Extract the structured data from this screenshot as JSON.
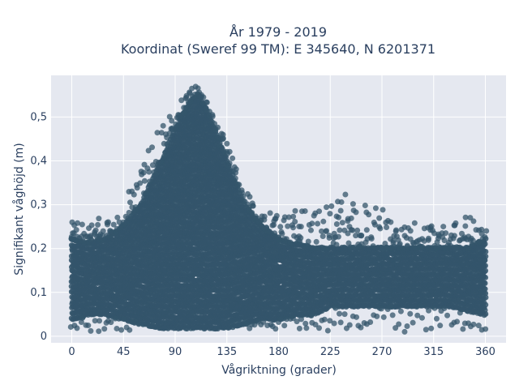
{
  "chart_data": {
    "type": "scatter",
    "title_line1": "År 1979 - 2019",
    "title_line2": "Koordinat (Sweref 99 TM): E 345640, N 6201371",
    "xlabel": "Vågriktning (grader)",
    "ylabel": "Signifikant våghöjd (m)",
    "xlim": [
      -18,
      378
    ],
    "ylim": [
      -0.015,
      0.595
    ],
    "xticks": [
      0,
      45,
      90,
      135,
      180,
      225,
      270,
      315,
      360
    ],
    "xtick_labels": [
      "0",
      "45",
      "90",
      "135",
      "180",
      "225",
      "270",
      "315",
      "360"
    ],
    "yticks": [
      0,
      0.1,
      0.2,
      0.3,
      0.4,
      0.5
    ],
    "ytick_labels": [
      "0",
      "0,1",
      "0,2",
      "0,3",
      "0,4",
      "0,5"
    ],
    "grid": true,
    "marker_color": "#34556b",
    "background_color": "#e5e8f0",
    "envelope": {
      "direction_deg": [
        0,
        15,
        30,
        45,
        60,
        75,
        90,
        100,
        105,
        110,
        115,
        120,
        135,
        150,
        165,
        180,
        195,
        210,
        225,
        240,
        255,
        270,
        285,
        300,
        315,
        330,
        345,
        360
      ],
      "dense_upper_m": [
        0.22,
        0.21,
        0.22,
        0.25,
        0.3,
        0.38,
        0.47,
        0.52,
        0.54,
        0.55,
        0.53,
        0.5,
        0.4,
        0.3,
        0.25,
        0.22,
        0.21,
        0.2,
        0.2,
        0.2,
        0.2,
        0.2,
        0.2,
        0.2,
        0.2,
        0.2,
        0.2,
        0.22
      ],
      "dense_lower_m": [
        0.04,
        0.05,
        0.05,
        0.04,
        0.03,
        0.02,
        0.02,
        0.02,
        0.02,
        0.02,
        0.02,
        0.02,
        0.02,
        0.03,
        0.04,
        0.04,
        0.05,
        0.05,
        0.07,
        0.07,
        0.07,
        0.07,
        0.07,
        0.07,
        0.07,
        0.07,
        0.06,
        0.05
      ],
      "outlier_max_m": [
        0.26,
        0.26,
        0.28,
        0.31,
        0.38,
        0.47,
        0.53,
        0.55,
        0.57,
        0.57,
        0.55,
        0.52,
        0.45,
        0.33,
        0.3,
        0.27,
        0.29,
        0.29,
        0.34,
        0.32,
        0.3,
        0.29,
        0.26,
        0.26,
        0.26,
        0.25,
        0.28,
        0.25
      ]
    }
  }
}
